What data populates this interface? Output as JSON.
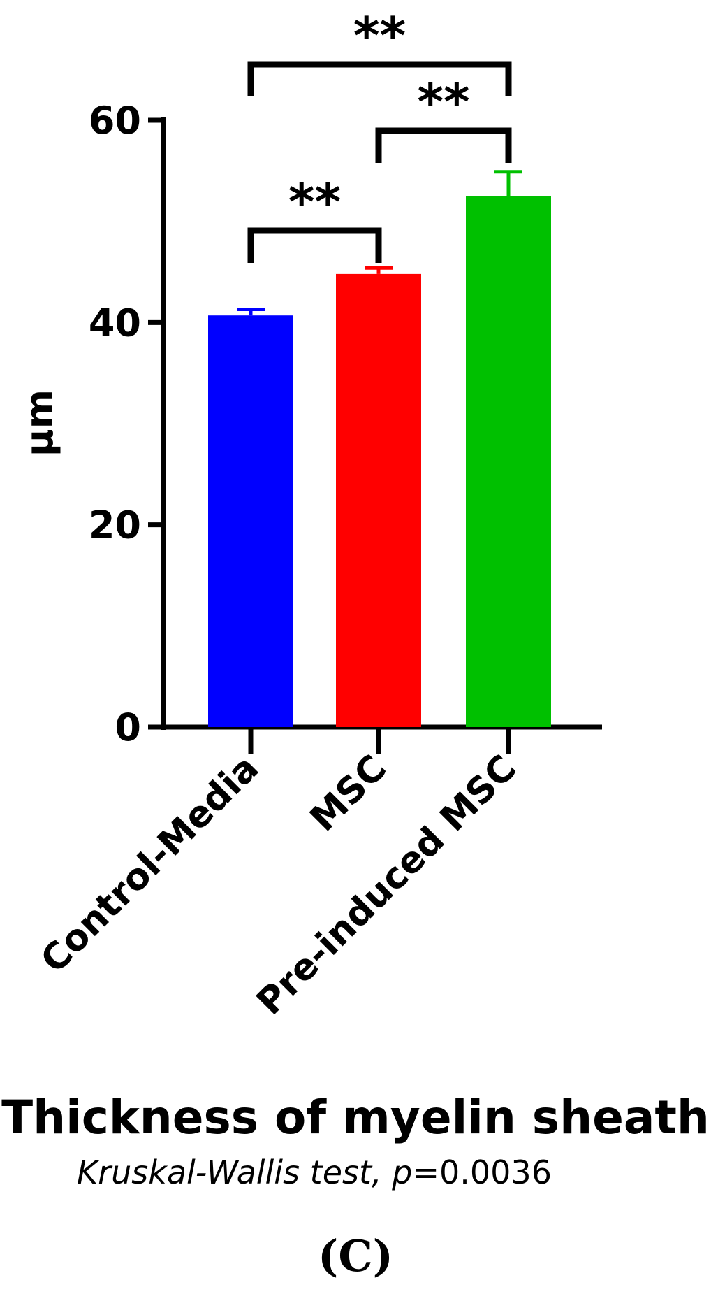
{
  "chart_data": {
    "type": "bar",
    "categories": [
      "Control-Media",
      "MSC",
      "Pre-induced MSC"
    ],
    "values": [
      40.7,
      44.8,
      52.5
    ],
    "errors": [
      0.6,
      0.6,
      2.4
    ],
    "colors": [
      "#0000ff",
      "#ff0000",
      "#00c000"
    ],
    "ylabel": "μm",
    "ylim": [
      0,
      60
    ],
    "yticks": [
      0,
      20,
      40,
      60
    ],
    "title": "Thickness of myelin sheath",
    "significance": [
      {
        "from": "Control-Media",
        "to": "MSC",
        "label": "**"
      },
      {
        "from": "MSC",
        "to": "Pre-induced MSC",
        "label": "**"
      },
      {
        "from": "Control-Media",
        "to": "Pre-induced MSC",
        "label": "**"
      }
    ]
  },
  "caption": {
    "title": "Thickness of myelin sheath",
    "test_name": "Kruskal-Wallis test,",
    "p_symbol": "p",
    "p_value": "=0.0036"
  },
  "panel_label": "(C)"
}
